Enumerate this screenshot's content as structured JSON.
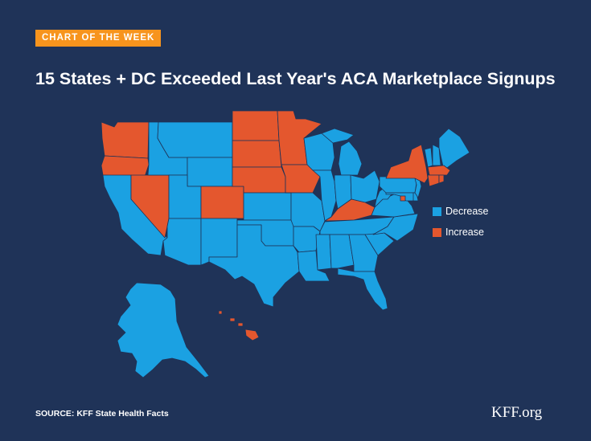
{
  "kicker": "CHART OF THE WEEK",
  "title": "15 States + DC Exceeded Last Year's ACA Marketplace Signups",
  "colors": {
    "background": "#1f3358",
    "decrease": "#1ba1e2",
    "increase": "#e4572e",
    "kicker": "#f7941d",
    "border": "#1f3358"
  },
  "legend": [
    {
      "label": "Decrease",
      "status": "decrease"
    },
    {
      "label": "Increase",
      "status": "increase"
    }
  ],
  "map_data": {
    "increase": [
      "WA",
      "OR",
      "NV",
      "CO",
      "ND",
      "SD",
      "NE",
      "MN",
      "IA",
      "KY",
      "NY",
      "MA",
      "CT",
      "RI",
      "DC",
      "HI"
    ],
    "decrease": [
      "CA",
      "ID",
      "MT",
      "WY",
      "UT",
      "AZ",
      "NM",
      "TX",
      "OK",
      "KS",
      "MO",
      "AR",
      "LA",
      "WI",
      "IL",
      "MI",
      "IN",
      "OH",
      "TN",
      "MS",
      "AL",
      "GA",
      "FL",
      "SC",
      "NC",
      "VA",
      "WV",
      "PA",
      "MD",
      "DE",
      "NJ",
      "VT",
      "NH",
      "ME",
      "AK"
    ]
  },
  "source": "SOURCE: KFF State Health Facts",
  "logo": "KFF.org"
}
